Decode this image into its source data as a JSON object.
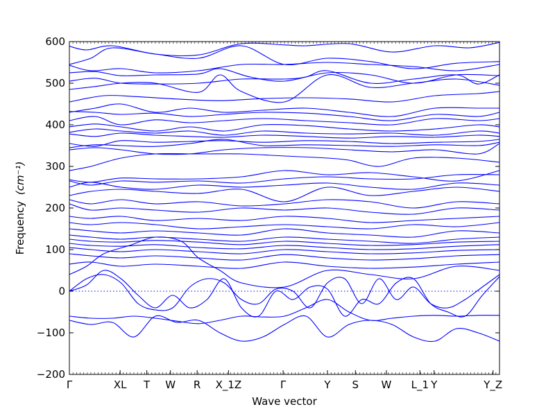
{
  "chart_data": {
    "type": "line",
    "title": "",
    "xlabel": "Wave vector",
    "ylabel": "Frequency",
    "ylabel_unit": "(cm⁻¹)",
    "ylim": [
      -200,
      600
    ],
    "xlim": [
      0,
      1
    ],
    "yticks": [
      -200,
      -100,
      0,
      100,
      200,
      300,
      400,
      500,
      600
    ],
    "ytick_labels": [
      "−200",
      "−100",
      "0",
      "100",
      "200",
      "300",
      "400",
      "500",
      "600"
    ],
    "high_symmetry_points": [
      {
        "label": "Γ",
        "x": 0.0
      },
      {
        "label": "XL",
        "x": 0.118
      },
      {
        "label": "T",
        "x": 0.18
      },
      {
        "label": "W",
        "x": 0.235
      },
      {
        "label": "R",
        "x": 0.297
      },
      {
        "label": "X_1Z",
        "x": 0.37
      },
      {
        "label": "Γ",
        "x": 0.497
      },
      {
        "label": "Y",
        "x": 0.6
      },
      {
        "label": "S",
        "x": 0.665
      },
      {
        "label": "W",
        "x": 0.737
      },
      {
        "label": "L_1",
        "x": 0.815
      },
      {
        "label": "Y",
        "x": 0.848
      },
      {
        "label": "Y_Z",
        "x": 0.985
      }
    ],
    "zero_line": true,
    "line_color": "#0000ff",
    "series": [
      {
        "x": [
          0,
          0.04,
          0.1,
          0.2,
          0.3,
          0.4,
          0.5,
          0.55,
          0.65,
          0.75,
          0.85,
          0.93,
          1.0
        ],
        "y": [
          589,
          580,
          590,
          570,
          568,
          595,
          592,
          590,
          595,
          575,
          590,
          585,
          598
        ]
      },
      {
        "x": [
          0,
          0.05,
          0.1,
          0.2,
          0.3,
          0.4,
          0.5,
          0.6,
          0.7,
          0.8,
          0.9,
          1.0
        ],
        "y": [
          545,
          560,
          585,
          570,
          560,
          590,
          545,
          560,
          552,
          535,
          548,
          552
        ]
      },
      {
        "x": [
          0,
          0.05,
          0.12,
          0.2,
          0.3,
          0.4,
          0.5,
          0.6,
          0.7,
          0.8,
          0.9,
          1.0
        ],
        "y": [
          543,
          530,
          535,
          525,
          530,
          545,
          545,
          550,
          545,
          540,
          530,
          545
        ]
      },
      {
        "x": [
          0,
          0.06,
          0.12,
          0.2,
          0.3,
          0.35,
          0.42,
          0.5,
          0.6,
          0.7,
          0.8,
          0.9,
          1.0
        ],
        "y": [
          525,
          528,
          518,
          520,
          522,
          535,
          515,
          505,
          525,
          520,
          500,
          520,
          518
        ]
      },
      {
        "x": [
          0,
          0.06,
          0.12,
          0.2,
          0.3,
          0.4,
          0.5,
          0.55,
          0.6,
          0.7,
          0.8,
          0.9,
          0.95,
          1.0
        ],
        "y": [
          505,
          512,
          500,
          498,
          500,
          510,
          510,
          515,
          530,
          500,
          510,
          520,
          498,
          520
        ]
      },
      {
        "x": [
          0,
          0.06,
          0.12,
          0.2,
          0.3,
          0.35,
          0.4,
          0.5,
          0.6,
          0.7,
          0.8,
          0.9,
          1.0
        ],
        "y": [
          485,
          492,
          500,
          500,
          478,
          520,
          480,
          455,
          520,
          490,
          500,
          510,
          495
        ]
      },
      {
        "x": [
          0,
          0.08,
          0.15,
          0.25,
          0.35,
          0.45,
          0.55,
          0.65,
          0.75,
          0.85,
          0.95,
          1.0
        ],
        "y": [
          455,
          470,
          468,
          462,
          458,
          463,
          465,
          462,
          455,
          470,
          475,
          480
        ]
      },
      {
        "x": [
          0,
          0.06,
          0.12,
          0.2,
          0.28,
          0.36,
          0.45,
          0.55,
          0.65,
          0.75,
          0.85,
          0.95,
          1.0
        ],
        "y": [
          430,
          440,
          450,
          430,
          440,
          430,
          435,
          440,
          430,
          420,
          440,
          440,
          440
        ]
      },
      {
        "x": [
          0,
          0.06,
          0.12,
          0.2,
          0.28,
          0.36,
          0.45,
          0.55,
          0.65,
          0.75,
          0.85,
          0.95,
          1.0
        ],
        "y": [
          432,
          430,
          425,
          428,
          420,
          425,
          430,
          428,
          420,
          410,
          425,
          420,
          430
        ]
      },
      {
        "x": [
          0,
          0.06,
          0.12,
          0.2,
          0.28,
          0.36,
          0.45,
          0.55,
          0.65,
          0.75,
          0.85,
          0.95,
          1.0
        ],
        "y": [
          410,
          420,
          400,
          412,
          405,
          410,
          415,
          410,
          405,
          400,
          415,
          410,
          415
        ]
      },
      {
        "x": [
          0,
          0.06,
          0.12,
          0.2,
          0.28,
          0.36,
          0.45,
          0.55,
          0.65,
          0.75,
          0.85,
          0.95,
          1.0
        ],
        "y": [
          395,
          402,
          395,
          385,
          395,
          385,
          400,
          398,
          390,
          385,
          390,
          400,
          395
        ]
      },
      {
        "x": [
          0,
          0.06,
          0.12,
          0.2,
          0.28,
          0.36,
          0.45,
          0.55,
          0.65,
          0.75,
          0.85,
          0.95,
          1.0
        ],
        "y": [
          382,
          390,
          385,
          380,
          385,
          375,
          385,
          380,
          378,
          380,
          375,
          385,
          380
        ]
      },
      {
        "x": [
          0,
          0.06,
          0.12,
          0.2,
          0.28,
          0.36,
          0.45,
          0.55,
          0.65,
          0.75,
          0.85,
          0.95,
          1.0
        ],
        "y": [
          378,
          372,
          380,
          375,
          372,
          370,
          375,
          372,
          368,
          372,
          370,
          375,
          372
        ]
      },
      {
        "x": [
          0,
          0.06,
          0.12,
          0.2,
          0.28,
          0.36,
          0.45,
          0.55,
          0.65,
          0.75,
          0.85,
          0.95,
          1.0
        ],
        "y": [
          355,
          348,
          362,
          358,
          360,
          362,
          358,
          362,
          360,
          355,
          358,
          360,
          365
        ]
      },
      {
        "x": [
          0,
          0.06,
          0.12,
          0.2,
          0.28,
          0.36,
          0.45,
          0.55,
          0.65,
          0.75,
          0.85,
          0.95,
          1.0
        ],
        "y": [
          345,
          352,
          350,
          348,
          355,
          365,
          350,
          352,
          350,
          348,
          352,
          350,
          358
        ]
      },
      {
        "x": [
          0,
          0.06,
          0.12,
          0.2,
          0.28,
          0.36,
          0.45,
          0.55,
          0.65,
          0.75,
          0.85,
          0.95,
          1.0
        ],
        "y": [
          340,
          345,
          340,
          330,
          330,
          340,
          345,
          345,
          340,
          335,
          340,
          330,
          355
        ]
      },
      {
        "x": [
          0,
          0.05,
          0.12,
          0.2,
          0.3,
          0.4,
          0.5,
          0.6,
          0.65,
          0.72,
          0.8,
          0.9,
          1.0
        ],
        "y": [
          290,
          300,
          320,
          330,
          330,
          330,
          325,
          320,
          315,
          300,
          320,
          320,
          310
        ]
      },
      {
        "x": [
          0,
          0.05,
          0.12,
          0.2,
          0.3,
          0.4,
          0.5,
          0.6,
          0.7,
          0.8,
          0.9,
          1.0
        ],
        "y": [
          268,
          262,
          272,
          270,
          270,
          275,
          290,
          280,
          285,
          275,
          265,
          290
        ]
      },
      {
        "x": [
          0,
          0.05,
          0.12,
          0.2,
          0.3,
          0.4,
          0.5,
          0.6,
          0.7,
          0.8,
          0.9,
          1.0
        ],
        "y": [
          265,
          255,
          265,
          262,
          265,
          260,
          270,
          275,
          270,
          270,
          280,
          280
        ]
      },
      {
        "x": [
          0,
          0.05,
          0.12,
          0.2,
          0.3,
          0.4,
          0.5,
          0.6,
          0.7,
          0.8,
          0.9,
          1.0
        ],
        "y": [
          250,
          262,
          250,
          245,
          255,
          250,
          255,
          260,
          250,
          245,
          260,
          255
        ]
      },
      {
        "x": [
          0,
          0.05,
          0.12,
          0.2,
          0.3,
          0.4,
          0.5,
          0.6,
          0.7,
          0.8,
          0.9,
          1.0
        ],
        "y": [
          230,
          240,
          245,
          240,
          235,
          245,
          215,
          250,
          230,
          240,
          250,
          240
        ]
      },
      {
        "x": [
          0,
          0.05,
          0.12,
          0.2,
          0.3,
          0.4,
          0.5,
          0.6,
          0.7,
          0.8,
          0.9,
          1.0
        ],
        "y": [
          220,
          210,
          220,
          210,
          215,
          205,
          210,
          220,
          215,
          200,
          215,
          210
        ]
      },
      {
        "x": [
          0,
          0.05,
          0.12,
          0.2,
          0.3,
          0.4,
          0.5,
          0.6,
          0.7,
          0.8,
          0.9,
          1.0
        ],
        "y": [
          210,
          195,
          200,
          195,
          190,
          200,
          195,
          200,
          190,
          185,
          200,
          195
        ]
      },
      {
        "x": [
          0,
          0.05,
          0.12,
          0.2,
          0.3,
          0.4,
          0.5,
          0.6,
          0.7,
          0.8,
          0.9,
          1.0
        ],
        "y": [
          180,
          175,
          180,
          170,
          175,
          170,
          180,
          175,
          165,
          170,
          175,
          180
        ]
      },
      {
        "x": [
          0,
          0.05,
          0.12,
          0.2,
          0.3,
          0.4,
          0.5,
          0.6,
          0.7,
          0.8,
          0.9,
          1.0
        ],
        "y": [
          165,
          160,
          165,
          160,
          150,
          155,
          160,
          155,
          150,
          160,
          155,
          165
        ]
      },
      {
        "x": [
          0,
          0.05,
          0.12,
          0.2,
          0.3,
          0.4,
          0.5,
          0.6,
          0.7,
          0.8,
          0.9,
          1.0
        ],
        "y": [
          150,
          145,
          140,
          145,
          140,
          135,
          150,
          140,
          135,
          130,
          145,
          140
        ]
      },
      {
        "x": [
          0,
          0.05,
          0.12,
          0.2,
          0.3,
          0.4,
          0.5,
          0.6,
          0.7,
          0.8,
          0.9,
          1.0
        ],
        "y": [
          135,
          130,
          125,
          130,
          125,
          120,
          130,
          125,
          120,
          115,
          125,
          130
        ]
      },
      {
        "x": [
          0,
          0.05,
          0.12,
          0.2,
          0.3,
          0.4,
          0.5,
          0.6,
          0.7,
          0.8,
          0.9,
          1.0
        ],
        "y": [
          125,
          120,
          118,
          122,
          118,
          112,
          120,
          115,
          110,
          112,
          118,
          120
        ]
      },
      {
        "x": [
          0,
          0.05,
          0.12,
          0.2,
          0.3,
          0.4,
          0.5,
          0.6,
          0.7,
          0.8,
          0.9,
          1.0
        ],
        "y": [
          115,
          110,
          108,
          112,
          105,
          102,
          110,
          105,
          100,
          102,
          108,
          112
        ]
      },
      {
        "x": [
          0,
          0.05,
          0.12,
          0.2,
          0.3,
          0.4,
          0.5,
          0.6,
          0.7,
          0.8,
          0.9,
          1.0
        ],
        "y": [
          105,
          100,
          95,
          100,
          95,
          90,
          100,
          95,
          90,
          92,
          98,
          100
        ]
      },
      {
        "x": [
          0,
          0.05,
          0.12,
          0.2,
          0.3,
          0.4,
          0.5,
          0.6,
          0.7,
          0.8,
          0.9,
          1.0
        ],
        "y": [
          90,
          85,
          80,
          85,
          80,
          75,
          88,
          80,
          75,
          78,
          85,
          88
        ]
      },
      {
        "x": [
          0,
          0.05,
          0.12,
          0.2,
          0.3,
          0.4,
          0.5,
          0.6,
          0.7,
          0.8,
          0.9,
          1.0
        ],
        "y": [
          65,
          70,
          60,
          65,
          60,
          55,
          70,
          60,
          55,
          58,
          65,
          70
        ]
      },
      {
        "x": [
          0,
          0.04,
          0.08,
          0.14,
          0.2,
          0.26,
          0.3,
          0.35,
          0.4,
          0.5,
          0.6,
          0.7,
          0.8,
          0.9,
          1.0
        ],
        "y": [
          40,
          60,
          90,
          110,
          130,
          120,
          80,
          50,
          20,
          10,
          50,
          40,
          30,
          60,
          50
        ]
      },
      {
        "x": [
          0,
          0.04,
          0.08,
          0.12,
          0.16,
          0.2,
          0.24,
          0.28,
          0.32,
          0.36,
          0.4,
          0.44,
          0.48,
          0.52,
          0.56,
          0.6,
          0.64,
          0.68,
          0.72,
          0.76,
          0.8,
          0.84,
          0.88,
          0.92,
          0.96,
          1.0
        ],
        "y": [
          0,
          30,
          40,
          20,
          -30,
          -45,
          -40,
          10,
          30,
          20,
          -20,
          -30,
          5,
          0,
          -40,
          20,
          30,
          -30,
          30,
          -20,
          10,
          -30,
          -40,
          -20,
          10,
          40
        ]
      },
      {
        "x": [
          0,
          0.04,
          0.08,
          0.12,
          0.16,
          0.2,
          0.24,
          0.28,
          0.32,
          0.36,
          0.4,
          0.44,
          0.48,
          0.52,
          0.56,
          0.6,
          0.64,
          0.68,
          0.72,
          0.76,
          0.8,
          0.84,
          0.88,
          0.92,
          0.96,
          1.0
        ],
        "y": [
          0,
          15,
          50,
          30,
          -10,
          -40,
          -10,
          -40,
          -20,
          30,
          -40,
          -60,
          0,
          -20,
          10,
          5,
          -60,
          -20,
          -30,
          20,
          30,
          -30,
          -50,
          -60,
          -10,
          35
        ]
      },
      {
        "x": [
          0,
          0.05,
          0.1,
          0.15,
          0.2,
          0.25,
          0.3,
          0.35,
          0.4,
          0.45,
          0.5,
          0.55,
          0.6,
          0.65,
          0.7,
          0.75,
          0.8,
          0.85,
          0.9,
          0.95,
          1.0
        ],
        "y": [
          -60,
          -65,
          -65,
          -60,
          -65,
          -72,
          -78,
          -70,
          -60,
          -62,
          -60,
          -40,
          -20,
          -50,
          -70,
          -65,
          -60,
          -58,
          -60,
          -58,
          -58
        ]
      },
      {
        "x": [
          0,
          0.05,
          0.1,
          0.15,
          0.2,
          0.25,
          0.3,
          0.35,
          0.4,
          0.45,
          0.5,
          0.55,
          0.6,
          0.65,
          0.7,
          0.75,
          0.8,
          0.85,
          0.9,
          0.95,
          1.0
        ],
        "y": [
          -70,
          -80,
          -75,
          -110,
          -60,
          -75,
          -70,
          -100,
          -120,
          -110,
          -80,
          -60,
          -110,
          -80,
          -70,
          -80,
          -110,
          -120,
          -90,
          -100,
          -120
        ]
      }
    ]
  }
}
